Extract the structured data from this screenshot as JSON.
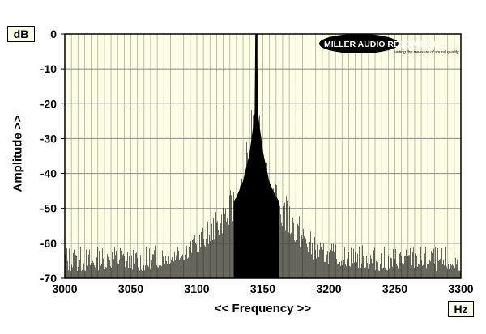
{
  "chart_data": {
    "type": "area",
    "title": "",
    "xlabel": "<< Frequency >>",
    "ylabel": "Amplitude >>",
    "x_unit": "Hz",
    "y_unit": "dB",
    "xlim": [
      3000,
      3300
    ],
    "ylim": [
      -70,
      0
    ],
    "x_ticks": [
      3000,
      3050,
      3100,
      3150,
      3200,
      3250,
      3300
    ],
    "y_ticks": [
      0,
      -10,
      -20,
      -30,
      -40,
      -50,
      -60,
      -70
    ],
    "x_tick_labels": [
      "3000",
      "3050",
      "3100",
      "3150",
      "3200",
      "3250",
      "3300"
    ],
    "y_tick_labels": [
      "0",
      "-10",
      "-20",
      "-30",
      "-40",
      "-50",
      "-60",
      "-70"
    ],
    "grid": true,
    "series": [
      {
        "x": [
          3000,
          3020,
          3040,
          3060,
          3080,
          3090,
          3100,
          3110,
          3120,
          3130,
          3135,
          3140,
          3143,
          3145,
          3147,
          3150,
          3155,
          3160,
          3170,
          3180,
          3190,
          3200,
          3220,
          3240,
          3260,
          3280,
          3300
        ],
        "peak": [
          -60,
          -61,
          -60,
          -61,
          -59,
          -58,
          -57,
          -53,
          -48,
          -42,
          -36,
          -25,
          -12,
          0,
          -10,
          -24,
          -36,
          -41,
          -47,
          -53,
          -58,
          -60,
          -60,
          -61,
          -60,
          -61,
          -61
        ],
        "floor": [
          -68,
          -68,
          -67,
          -68,
          -66,
          -65,
          -63,
          -60,
          -57,
          -53,
          -50,
          -46,
          -43,
          -42,
          -44,
          -46,
          -51,
          -54,
          -58,
          -62,
          -65,
          -66,
          -67,
          -68,
          -67,
          -68,
          -68
        ]
      }
    ],
    "colors": {
      "fill": "#000000",
      "plot_bg": "#ffffe6",
      "grid": "#aaaaaa"
    }
  },
  "logo": {
    "brand": "MILLER AUDIO RESEARCH",
    "tagline": "setting the measure of sound quality"
  }
}
